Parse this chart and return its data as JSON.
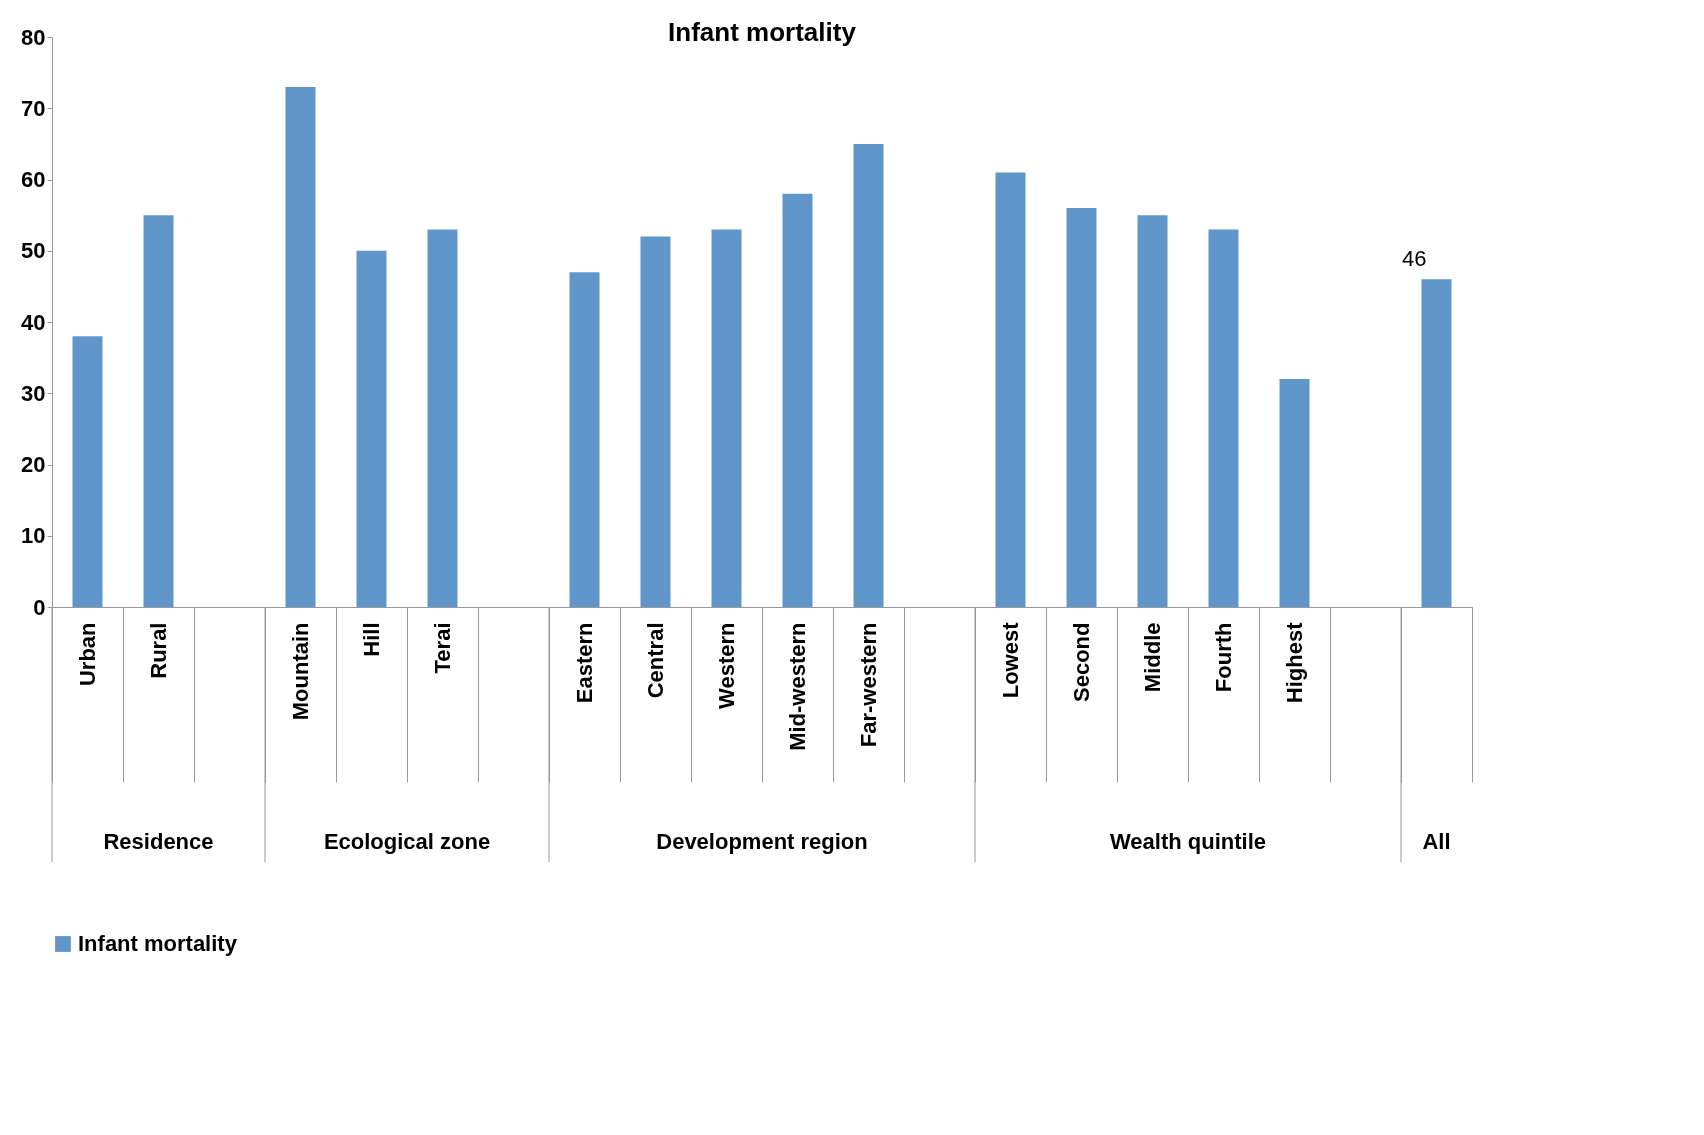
{
  "chart_data": {
    "type": "bar",
    "title": "Infant mortality",
    "categories": [
      "Urban",
      "Rural",
      null,
      "Mountain",
      "Hill",
      "Terai",
      null,
      "Eastern",
      "Central",
      "Western",
      "Mid-western",
      "Far-western",
      null,
      "Lowest",
      "Second",
      "Middle",
      "Fourth",
      "Highest",
      null,
      null
    ],
    "series": [
      {
        "name": "Infant mortality",
        "color": "#6096c9",
        "values": [
          38,
          55,
          null,
          73,
          50,
          53,
          null,
          47,
          52,
          53,
          58,
          65,
          null,
          61,
          56,
          55,
          53,
          32,
          null,
          46
        ],
        "value_labels": [
          null,
          null,
          null,
          null,
          null,
          null,
          null,
          null,
          null,
          null,
          null,
          null,
          null,
          null,
          null,
          null,
          null,
          null,
          null,
          "46"
        ]
      }
    ],
    "annotations": [
      "Residence",
      "Ecological zone",
      "Development region",
      "Wealth quintile",
      "All"
    ],
    "ylim": [
      0,
      80
    ],
    "yticks": [
      0,
      10,
      20,
      30,
      40,
      50,
      60,
      70,
      80
    ],
    "grid": false,
    "legend": "bottom"
  }
}
